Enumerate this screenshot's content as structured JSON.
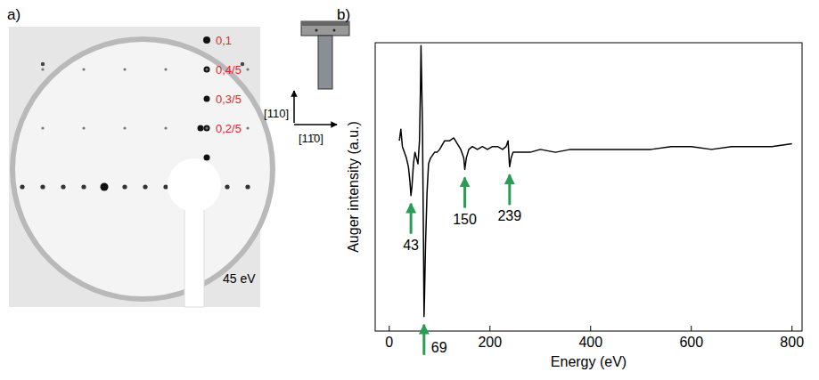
{
  "leed": {
    "panel_label": "a)",
    "energy": "45 eV",
    "spot_labels": [
      "0,1",
      "0,4/5",
      "0,3/5",
      "0,2/5"
    ],
    "directions": [
      "[110]",
      "[11̄0]"
    ]
  },
  "chart_data": {
    "type": "line",
    "panel_label": "b)",
    "x_label": "Energy (eV)",
    "y_label": "Auger intensity (a.u.)",
    "x": [
      20,
      23,
      26,
      30,
      34,
      38,
      41,
      43,
      45,
      48,
      51,
      54,
      57,
      60,
      62,
      63,
      64,
      66,
      68,
      69,
      70,
      72,
      75,
      78,
      82,
      86,
      90,
      95,
      100,
      110,
      120,
      128,
      135,
      142,
      148,
      150,
      153,
      158,
      165,
      175,
      185,
      195,
      205,
      215,
      225,
      232,
      236,
      239,
      242,
      246,
      252,
      260,
      280,
      300,
      330,
      360,
      400,
      440,
      480,
      520,
      560,
      600,
      640,
      680,
      720,
      760,
      800
    ],
    "values": [
      66,
      70,
      64,
      62,
      60,
      57,
      52,
      47,
      50,
      58,
      62,
      60,
      58,
      66,
      85,
      99,
      90,
      70,
      30,
      5,
      12,
      30,
      48,
      58,
      60,
      61,
      62,
      62,
      63,
      66,
      66,
      67,
      65,
      63,
      60,
      56,
      60,
      63,
      64,
      63,
      64,
      63,
      64,
      64,
      63,
      64,
      66,
      57,
      60,
      62,
      62,
      62,
      62,
      63,
      62,
      63,
      63,
      63,
      63,
      63,
      64,
      64,
      63,
      64,
      64,
      64,
      65
    ],
    "color": "#000000",
    "xlim": [
      -28,
      820
    ],
    "ylim": [
      0,
      100
    ],
    "xticks": [
      0,
      200,
      400,
      600,
      800
    ],
    "tick_labels": "x",
    "annotations": [
      {
        "x": 43,
        "text": "43"
      },
      {
        "x": 69,
        "text": "69"
      },
      {
        "x": 150,
        "text": "150"
      },
      {
        "x": 239,
        "text": "239"
      }
    ]
  }
}
